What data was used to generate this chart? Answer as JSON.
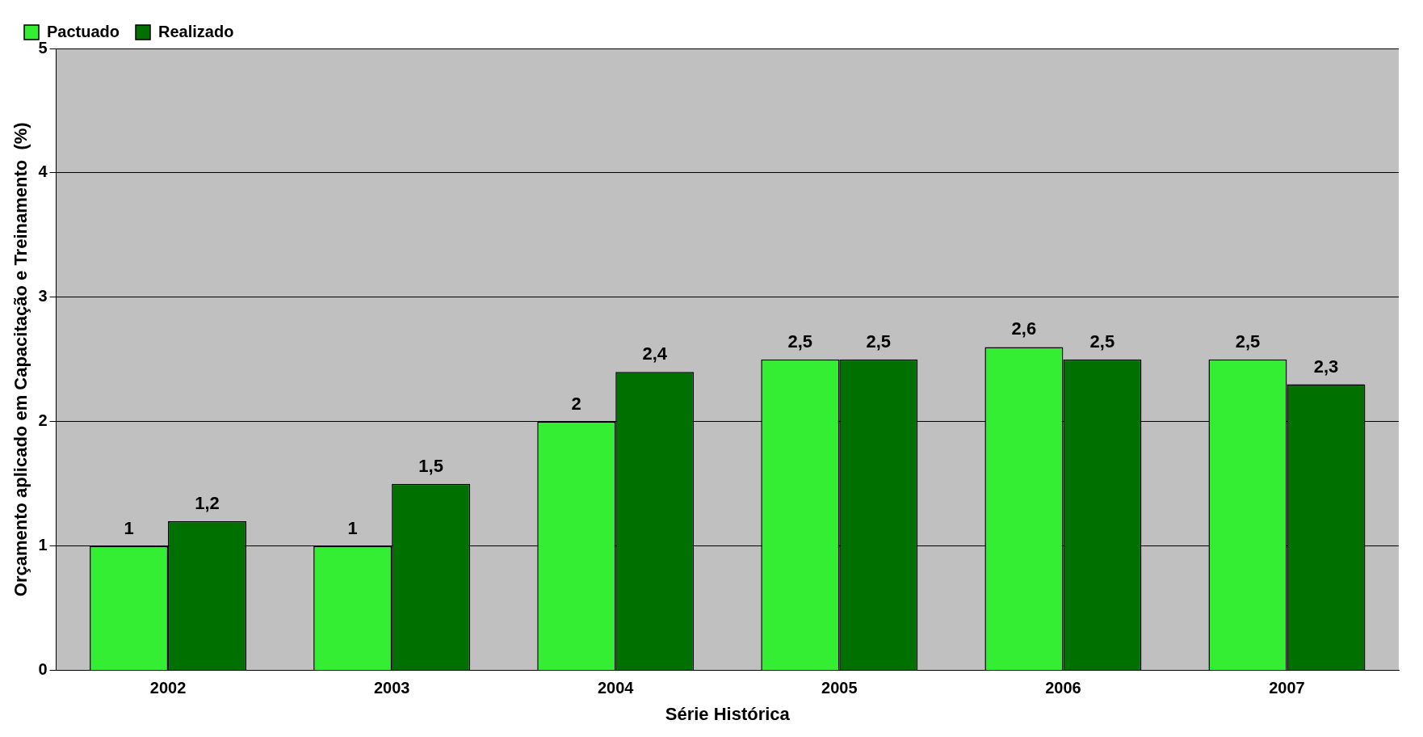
{
  "chart_data": {
    "type": "bar",
    "xlabel": "Série Histórica",
    "ylabel": "Orçamento aplicado em Capacitação e Treinamento  (%)",
    "categories": [
      "2002",
      "2003",
      "2004",
      "2005",
      "2006",
      "2007"
    ],
    "series": [
      {
        "name": "Pactuado",
        "color": "#33ee33",
        "values": [
          1,
          1,
          2,
          2.5,
          2.6,
          2.5
        ],
        "value_labels": [
          "1",
          "1",
          "2",
          "2,5",
          "2,6",
          "2,5"
        ]
      },
      {
        "name": "Realizado",
        "color": "#007000",
        "values": [
          1.2,
          1.5,
          2.4,
          2.5,
          2.5,
          2.3
        ],
        "value_labels": [
          "1,2",
          "1,5",
          "2,4",
          "2,5",
          "2,5",
          "2,3"
        ]
      }
    ],
    "ylim": [
      0,
      5
    ],
    "yticks": [
      0,
      1,
      2,
      3,
      4,
      5
    ],
    "grid": "y",
    "legend": "top left"
  }
}
